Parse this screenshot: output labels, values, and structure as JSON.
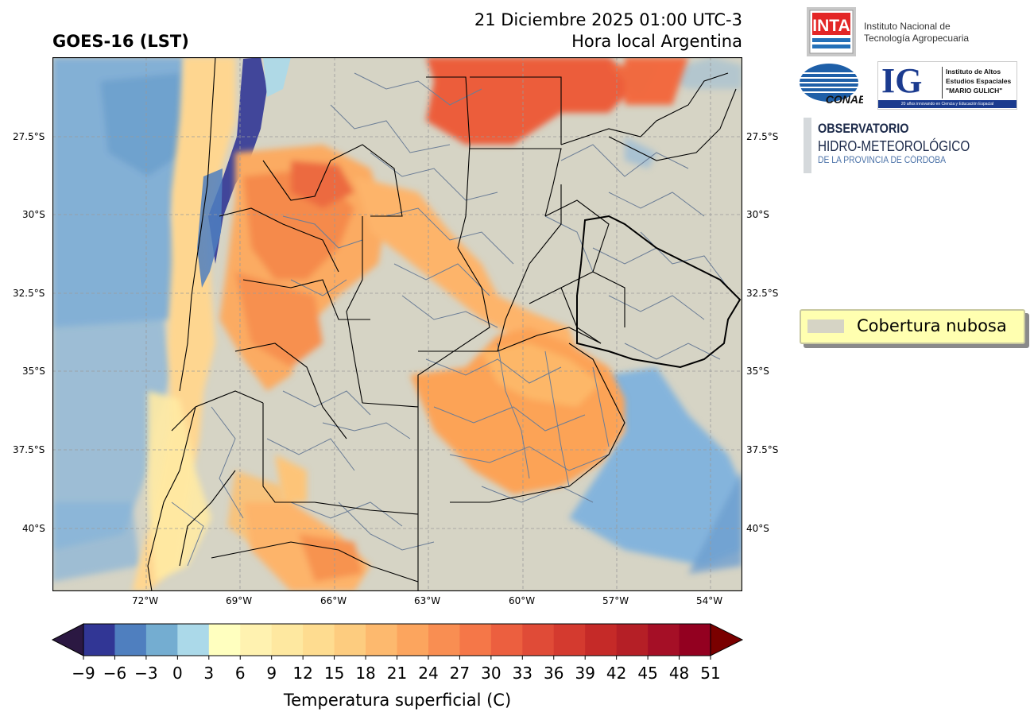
{
  "header": {
    "title_left": "GOES-16 (LST)",
    "date_line": "21 Diciembre 2025 01:00 UTC-3",
    "local_line": "Hora local Argentina"
  },
  "map": {
    "lat_ticks": [
      "27.5°S",
      "30°S",
      "32.5°S",
      "35°S",
      "37.5°S",
      "40°S"
    ],
    "lon_ticks": [
      "72°W",
      "69°W",
      "66°W",
      "63°W",
      "60°W",
      "57°W",
      "54°W"
    ],
    "colors": {
      "cloud": "#d6d4c5",
      "land_border": "#000000",
      "dept_border": "#6b7d96"
    }
  },
  "colorbar": {
    "label": "Temperatura superficial (C)",
    "ticks": [
      "−9",
      "−6",
      "−3",
      "0",
      "3",
      "6",
      "9",
      "12",
      "15",
      "18",
      "21",
      "24",
      "27",
      "30",
      "33",
      "36",
      "39",
      "42",
      "45",
      "48",
      "51"
    ],
    "colors": [
      "#313695",
      "#4f7fbf",
      "#74add1",
      "#abd9e9",
      "#ffffbf",
      "#fff2b0",
      "#fee8a0",
      "#fedc90",
      "#fdcc7f",
      "#fdb96e",
      "#fca55e",
      "#f98e52",
      "#f57748",
      "#ec5f3f",
      "#e04b37",
      "#d43a2f",
      "#c52a28",
      "#b51f26",
      "#a50f26",
      "#930020"
    ],
    "under_color": "#2b1842",
    "over_color": "#7a0000"
  },
  "legend": {
    "label": "Cobertura nubosa"
  },
  "logos": {
    "inta_mark": "INTA",
    "inta_line1": "Instituto Nacional de",
    "inta_line2": "Tecnología Agropecuaria",
    "conae_mark": "CONAE",
    "ig_mark": "IG",
    "ig_line1": "Instituto de Altos",
    "ig_line2": "Estudios Espaciales",
    "ig_line3": "\"MARIO GULICH\"",
    "ig_footer": "20 años innovando en Ciencia y Educación Espacial",
    "obs_line1": "OBSERVATORIO",
    "obs_line2": "HIDRO-METEOROLÓGICO",
    "obs_line3": "DE LA PROVINCIA DE CÓRDOBA"
  }
}
